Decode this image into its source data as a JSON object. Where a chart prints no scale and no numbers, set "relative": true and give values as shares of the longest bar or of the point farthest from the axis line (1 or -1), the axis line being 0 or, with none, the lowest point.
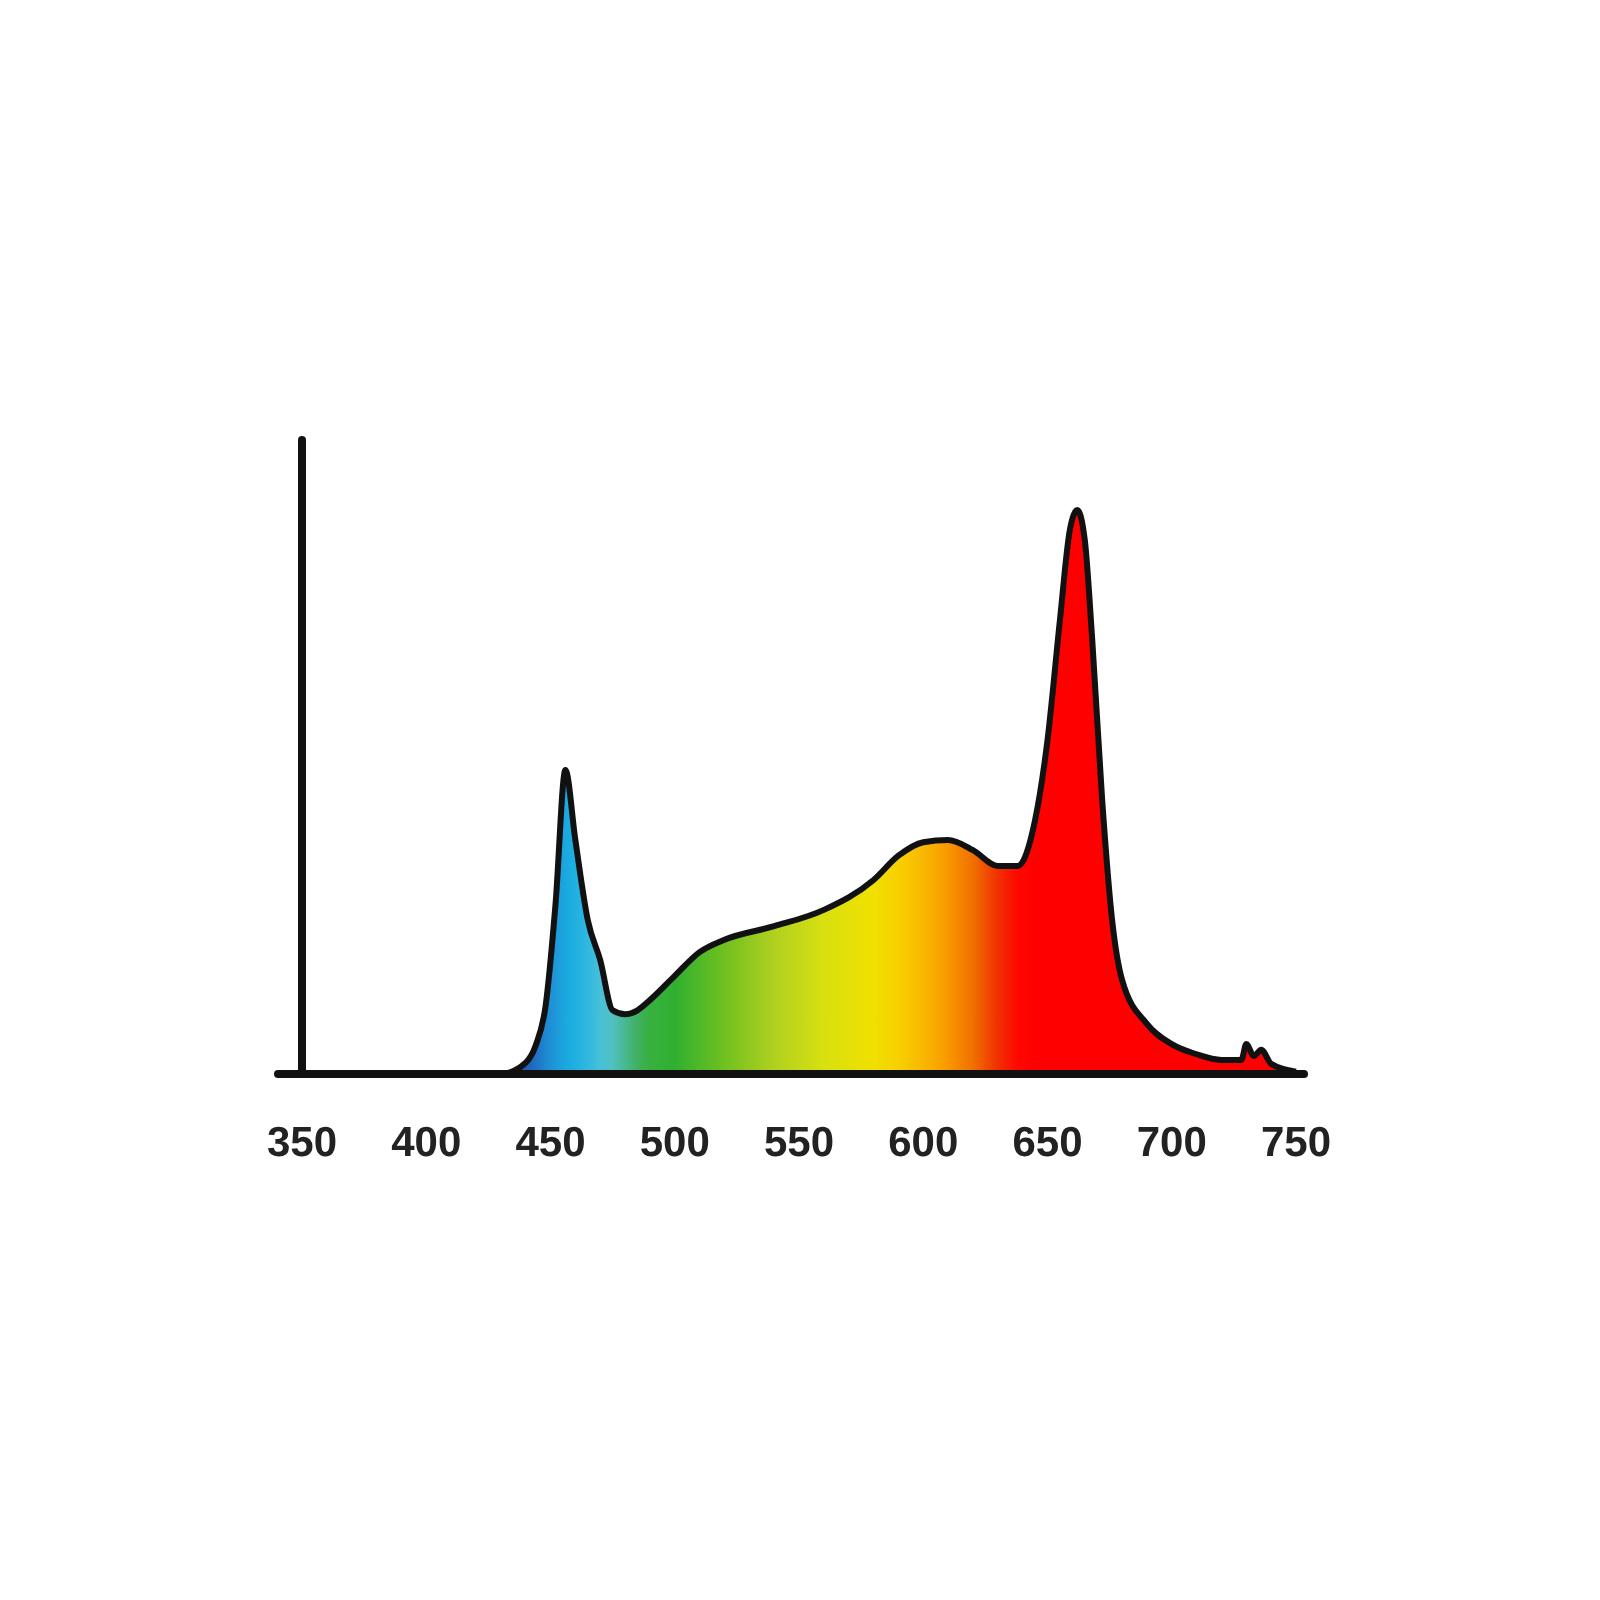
{
  "chart_data": {
    "type": "area",
    "relative": true,
    "xlim": [
      350,
      750
    ],
    "xticks": [
      350,
      400,
      450,
      500,
      550,
      600,
      650,
      700,
      750
    ],
    "series": [
      {
        "x": [
          350,
          430,
          440,
          444,
          448,
          452,
          456,
          460,
          465,
          470,
          475,
          480,
          485,
          490,
          500,
          510,
          520,
          540,
          560,
          580,
          590,
          600,
          610,
          620,
          630,
          638,
          645,
          650,
          655,
          659,
          662,
          665,
          668,
          672,
          676,
          680,
          690,
          700,
          710,
          720,
          728,
          730,
          733,
          736,
          740,
          750
        ],
        "values": [
          0,
          0,
          0.02,
          0.05,
          0.12,
          0.3,
          0.539,
          0.415,
          0.273,
          0.202,
          0.113,
          0.106,
          0.113,
          0.131,
          0.174,
          0.216,
          0.238,
          0.262,
          0.291,
          0.344,
          0.387,
          0.411,
          0.415,
          0.397,
          0.369,
          0.369,
          0.45,
          0.592,
          0.805,
          0.965,
          1,
          0.947,
          0.77,
          0.486,
          0.273,
          0.167,
          0.089,
          0.053,
          0.035,
          0.025,
          0.025,
          0.053,
          0.032,
          0.043,
          0.018,
          0.004
        ],
        "colors": [
          "#1a4fa0",
          "#1a4fa0",
          "#1f5fb8",
          "#2070c4",
          "#1e88d0",
          "#1e98d8",
          "#1aa8e0",
          "#20b0e0",
          "#30b8e0",
          "#48c0d8",
          "#50c0c0",
          "#48b890",
          "#40b060",
          "#38b040",
          "#30b030",
          "#50b828",
          "#70c020",
          "#b0d020",
          "#d8e010",
          "#f0e000",
          "#f8d000",
          "#f8b800",
          "#f89800",
          "#f07000",
          "#f03000",
          "#ff0800",
          "#ff0000",
          "#ff0000",
          "#ff0000",
          "#ff0000",
          "#ff0000",
          "#ff0000",
          "#ff0000",
          "#ff0000",
          "#ff0000",
          "#ff0000",
          "#ff0000",
          "#ff0000",
          "#ff0000",
          "#ff0000",
          "#ff0000",
          "#ff0000",
          "#ff0000",
          "#ff0000",
          "#ff0000",
          "#ff0000"
        ]
      }
    ]
  }
}
